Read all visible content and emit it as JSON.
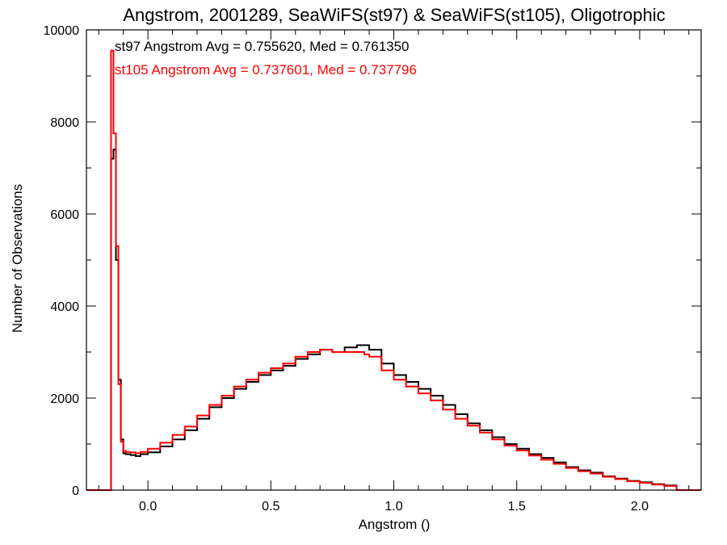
{
  "chart_data": {
    "type": "line",
    "step": true,
    "title": "Angstrom, 2001289, SeaWiFS(st97) & SeaWiFS(st105), Oligotrophic",
    "xlabel": "Angstrom ()",
    "ylabel": "Number of Observations",
    "xlim": [
      -0.25,
      2.25
    ],
    "ylim": [
      0,
      10000
    ],
    "xticks": [
      0.0,
      0.5,
      1.0,
      1.5,
      2.0
    ],
    "xtick_labels": [
      "0.0",
      "0.5",
      "1.0",
      "1.5",
      "2.0"
    ],
    "yticks": [
      0,
      2000,
      4000,
      6000,
      8000,
      10000
    ],
    "ytick_labels": [
      "0",
      "2000",
      "4000",
      "6000",
      "8000",
      "10000"
    ],
    "grid": false,
    "annotations": [
      {
        "text": "st97 Angstrom Avg = 0.755620, Med = 0.761350",
        "color": "#000000"
      },
      {
        "text": "st105 Angstrom Avg = 0.737601, Med = 0.737796",
        "color": "#ff0000"
      }
    ],
    "series": [
      {
        "color": "#000000",
        "x": [
          -0.25,
          -0.15,
          -0.14,
          -0.13,
          -0.12,
          -0.11,
          -0.1,
          -0.09,
          -0.07,
          -0.05,
          -0.03,
          0.0,
          0.05,
          0.1,
          0.15,
          0.2,
          0.25,
          0.3,
          0.35,
          0.4,
          0.45,
          0.5,
          0.55,
          0.6,
          0.65,
          0.7,
          0.75,
          0.8,
          0.85,
          0.88,
          0.9,
          0.95,
          1.0,
          1.05,
          1.1,
          1.15,
          1.2,
          1.25,
          1.3,
          1.35,
          1.4,
          1.45,
          1.5,
          1.55,
          1.6,
          1.65,
          1.7,
          1.75,
          1.8,
          1.85,
          1.9,
          1.95,
          2.0,
          2.05,
          2.1,
          2.15,
          2.25
        ],
        "y": [
          0,
          7200,
          7400,
          5000,
          2400,
          1100,
          800,
          780,
          760,
          740,
          780,
          820,
          950,
          1100,
          1300,
          1550,
          1800,
          2000,
          2200,
          2350,
          2500,
          2600,
          2700,
          2850,
          2950,
          3050,
          3000,
          3100,
          3150,
          3150,
          3050,
          2750,
          2500,
          2350,
          2200,
          2050,
          1850,
          1650,
          1450,
          1300,
          1150,
          1000,
          900,
          780,
          700,
          600,
          500,
          430,
          380,
          300,
          250,
          200,
          170,
          130,
          100,
          0,
          0
        ]
      },
      {
        "color": "#ff0000",
        "x": [
          -0.25,
          -0.15,
          -0.14,
          -0.13,
          -0.12,
          -0.11,
          -0.1,
          -0.09,
          -0.07,
          -0.05,
          -0.03,
          0.0,
          0.05,
          0.1,
          0.15,
          0.2,
          0.25,
          0.3,
          0.35,
          0.4,
          0.45,
          0.5,
          0.55,
          0.6,
          0.65,
          0.7,
          0.75,
          0.8,
          0.85,
          0.88,
          0.9,
          0.95,
          1.0,
          1.05,
          1.1,
          1.15,
          1.2,
          1.25,
          1.3,
          1.35,
          1.4,
          1.45,
          1.5,
          1.55,
          1.6,
          1.65,
          1.7,
          1.75,
          1.8,
          1.85,
          1.9,
          1.95,
          2.0,
          2.05,
          2.1,
          2.15,
          2.25
        ],
        "y": [
          0,
          9550,
          7750,
          5300,
          2300,
          1050,
          850,
          830,
          820,
          800,
          830,
          900,
          1030,
          1200,
          1380,
          1620,
          1850,
          2050,
          2250,
          2400,
          2550,
          2650,
          2750,
          2900,
          3000,
          3050,
          3000,
          3000,
          3000,
          2950,
          2900,
          2600,
          2400,
          2250,
          2100,
          1950,
          1750,
          1550,
          1400,
          1250,
          1100,
          970,
          860,
          750,
          660,
          570,
          480,
          410,
          360,
          290,
          240,
          190,
          160,
          120,
          90,
          0,
          0
        ]
      }
    ]
  }
}
